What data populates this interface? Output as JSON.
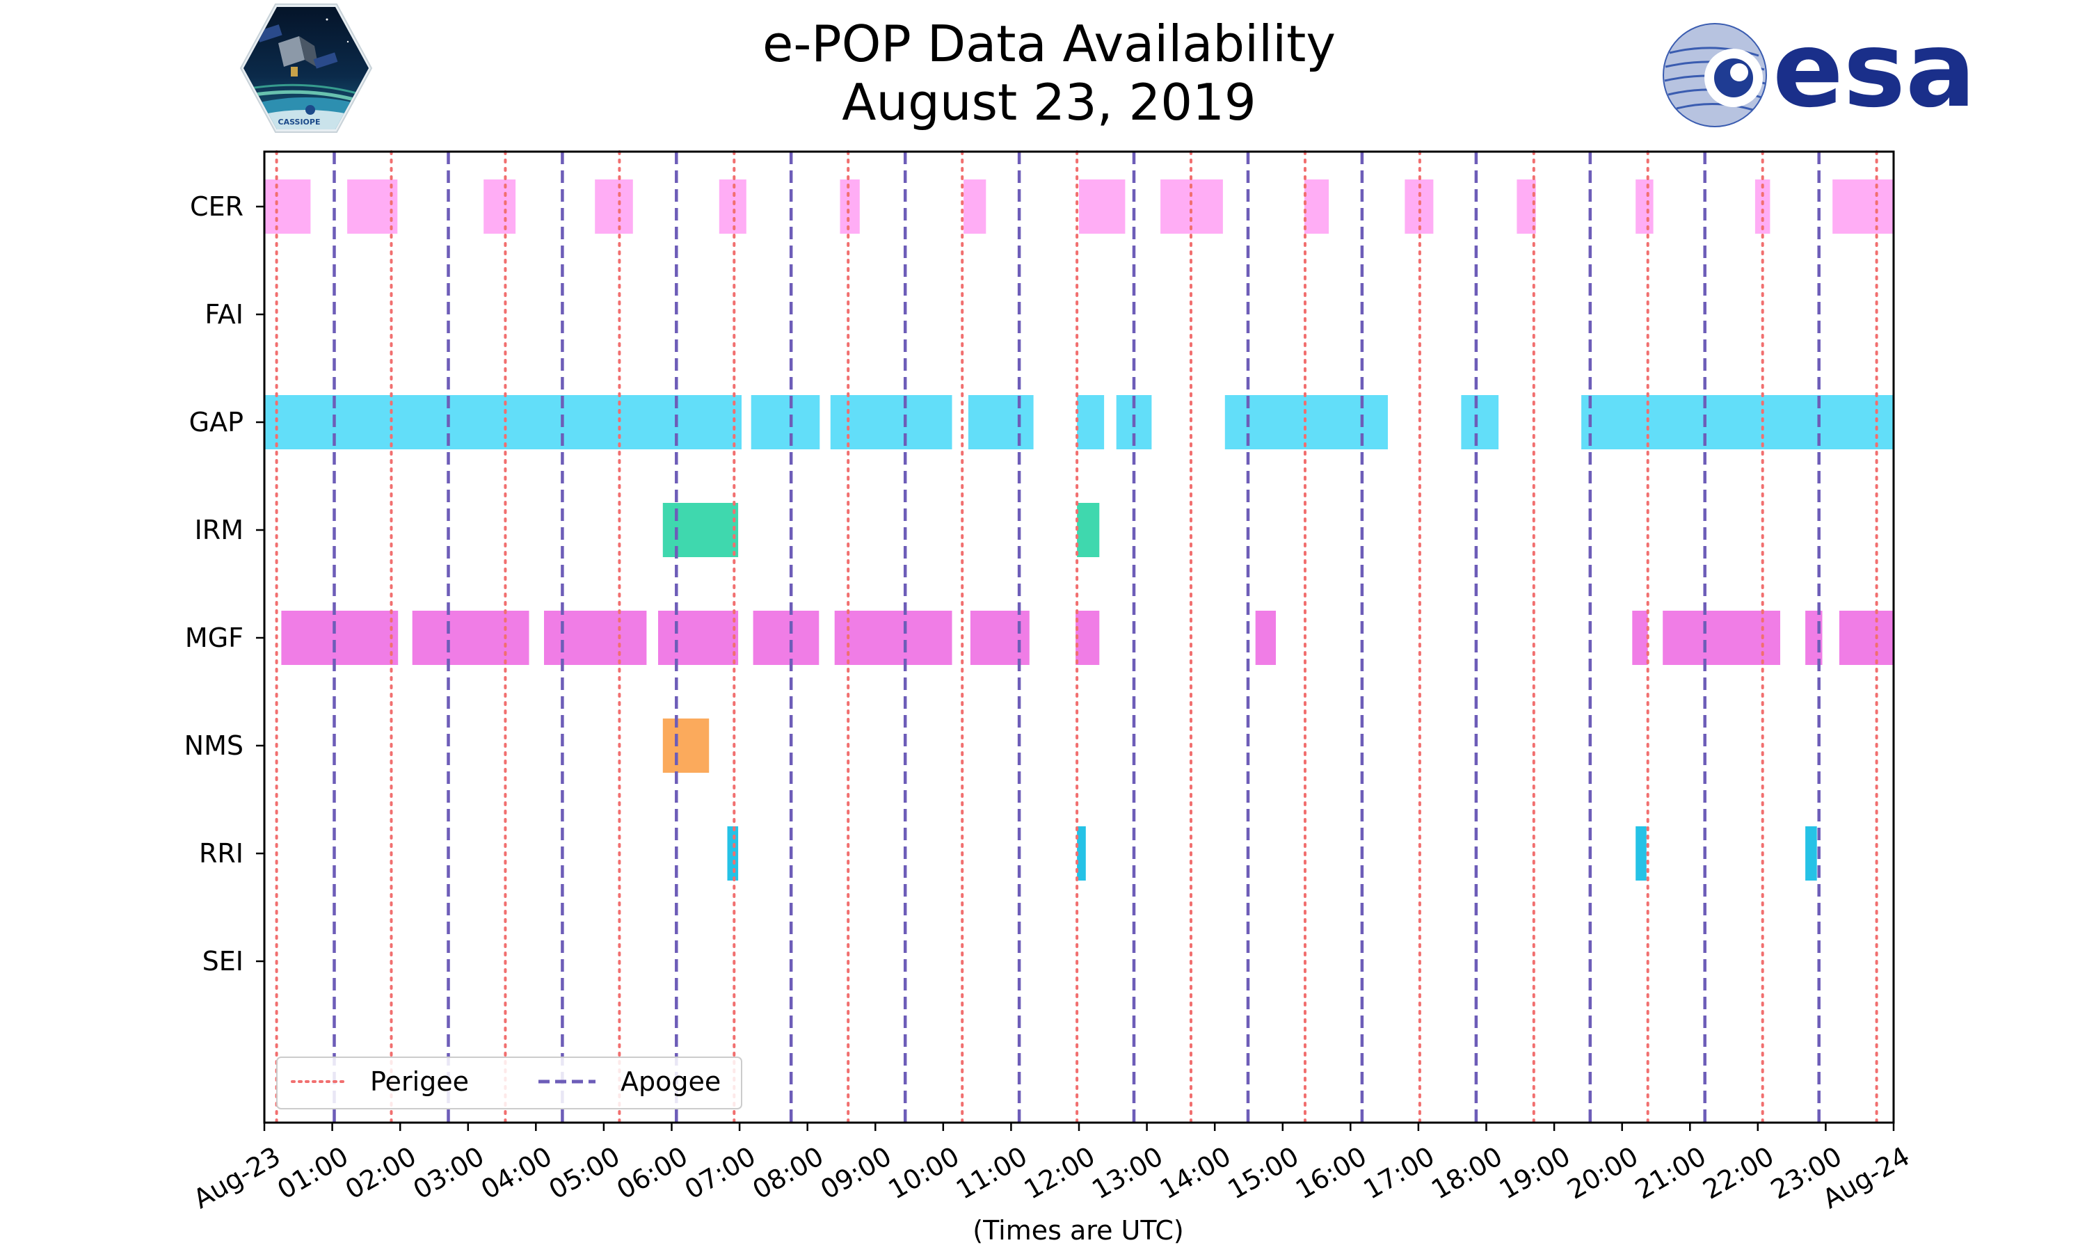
{
  "chart_data": {
    "type": "timeline",
    "title": "e-POP Data Availability",
    "subtitle": "August 23, 2019",
    "xlabel": "(Times are UTC)",
    "x_unit": "hours",
    "xlim": [
      0,
      24
    ],
    "x_tick_labels": [
      "Aug-23",
      "01:00",
      "02:00",
      "03:00",
      "04:00",
      "05:00",
      "06:00",
      "07:00",
      "08:00",
      "09:00",
      "10:00",
      "11:00",
      "12:00",
      "13:00",
      "14:00",
      "15:00",
      "16:00",
      "17:00",
      "18:00",
      "19:00",
      "20:00",
      "21:00",
      "22:00",
      "23:00",
      "Aug-24"
    ],
    "categories": [
      "CER",
      "FAI",
      "GAP",
      "IRM",
      "MGF",
      "NMS",
      "RRI",
      "SEI"
    ],
    "series": [
      {
        "name": "CER",
        "color": "#ffadf5",
        "intervals": [
          [
            0.0,
            0.68
          ],
          [
            1.22,
            1.96
          ],
          [
            3.23,
            3.7
          ],
          [
            4.87,
            5.43
          ],
          [
            6.7,
            7.1
          ],
          [
            8.48,
            8.77
          ],
          [
            10.3,
            10.63
          ],
          [
            12.0,
            12.68
          ],
          [
            13.2,
            14.12
          ],
          [
            15.32,
            15.68
          ],
          [
            16.8,
            17.22
          ],
          [
            18.45,
            18.73
          ],
          [
            20.2,
            20.46
          ],
          [
            21.96,
            22.18
          ],
          [
            23.1,
            24.0
          ]
        ]
      },
      {
        "name": "FAI",
        "color": "#cccccc",
        "intervals": []
      },
      {
        "name": "GAP",
        "color": "#62def9",
        "intervals": [
          [
            0.0,
            7.03
          ],
          [
            7.17,
            8.18
          ],
          [
            8.34,
            10.13
          ],
          [
            10.37,
            11.33
          ],
          [
            11.97,
            12.37
          ],
          [
            12.55,
            13.07
          ],
          [
            14.15,
            16.55
          ],
          [
            17.63,
            18.18
          ],
          [
            19.4,
            24.0
          ]
        ]
      },
      {
        "name": "IRM",
        "color": "#3fd8ae",
        "intervals": [
          [
            5.87,
            6.98
          ],
          [
            11.97,
            12.3
          ]
        ]
      },
      {
        "name": "MGF",
        "color": "#f07de6",
        "intervals": [
          [
            0.25,
            1.97
          ],
          [
            2.18,
            3.9
          ],
          [
            4.12,
            5.63
          ],
          [
            5.8,
            6.98
          ],
          [
            7.2,
            8.17
          ],
          [
            8.4,
            10.13
          ],
          [
            10.4,
            11.27
          ],
          [
            11.95,
            12.3
          ],
          [
            14.6,
            14.9
          ],
          [
            20.15,
            20.38
          ],
          [
            20.6,
            22.33
          ],
          [
            22.7,
            22.95
          ],
          [
            23.2,
            24.0
          ]
        ]
      },
      {
        "name": "NMS",
        "color": "#fbaa5c",
        "intervals": [
          [
            5.87,
            6.55
          ]
        ]
      },
      {
        "name": "RRI",
        "color": "#25c2e6",
        "intervals": [
          [
            6.82,
            6.98
          ],
          [
            11.97,
            12.1
          ],
          [
            20.2,
            20.36
          ],
          [
            22.7,
            22.87
          ]
        ]
      },
      {
        "name": "SEI",
        "color": "#cccccc",
        "intervals": []
      }
    ],
    "perigee_times": [
      0.18,
      1.87,
      3.55,
      5.23,
      6.92,
      8.6,
      10.28,
      11.97,
      13.65,
      15.33,
      17.02,
      18.7,
      20.38,
      22.07,
      23.75
    ],
    "apogee_times": [
      1.03,
      2.71,
      4.39,
      6.07,
      7.76,
      9.44,
      11.12,
      12.81,
      14.49,
      16.17,
      17.85,
      19.53,
      21.22,
      22.9
    ],
    "perigee_color": "#f16f6f",
    "apogee_color": "#6d5db8",
    "legend": {
      "position": "lower-left",
      "entries": [
        "Perigee",
        "Apogee"
      ]
    }
  },
  "logos": {
    "cassiope_text": "CASSIOPE",
    "esa_text": "esa"
  }
}
